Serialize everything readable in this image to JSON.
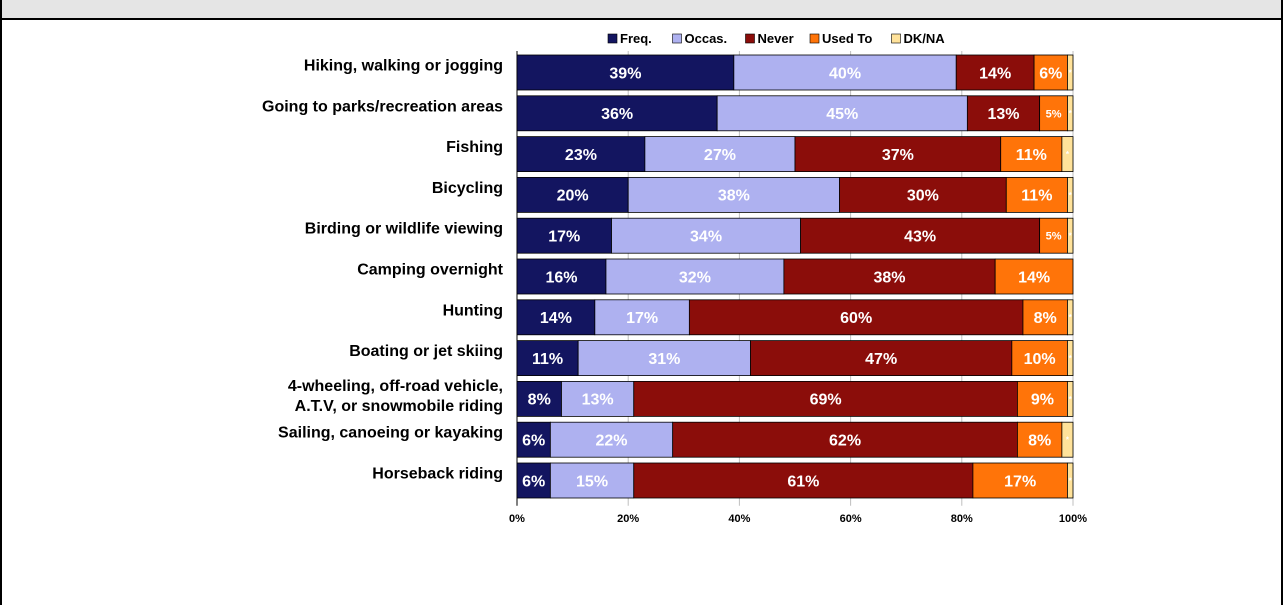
{
  "chart_data": {
    "type": "bar",
    "orientation": "horizontal",
    "stacked": true,
    "percent_axis": true,
    "title": "",
    "xlabel": "",
    "ylabel": "",
    "xlim": [
      0,
      100
    ],
    "x_ticks": [
      "0%",
      "20%",
      "40%",
      "60%",
      "80%",
      "100%"
    ],
    "legend_position": "top",
    "grid": true,
    "categories": [
      [
        "Hiking, walking or jogging"
      ],
      [
        "Going to parks/recreation areas"
      ],
      [
        "Fishing"
      ],
      [
        "Bicycling"
      ],
      [
        "Birding or wildlife viewing"
      ],
      [
        "Camping overnight"
      ],
      [
        "Hunting"
      ],
      [
        "Boating or jet skiing"
      ],
      [
        "4-wheeling, off-road vehicle,",
        "A.T.V, or snowmobile riding"
      ],
      [
        "Sailing, canoeing or kayaking"
      ],
      [
        "Horseback riding"
      ]
    ],
    "series": [
      {
        "name": "Freq.",
        "color": "#131560",
        "text_color": "#ffffff",
        "values": [
          39,
          36,
          23,
          20,
          17,
          16,
          14,
          11,
          8,
          6,
          6
        ],
        "labels": [
          "39%",
          "36%",
          "23%",
          "20%",
          "17%",
          "16%",
          "14%",
          "11%",
          "8%",
          "6%",
          "6%"
        ]
      },
      {
        "name": "Occas.",
        "color": "#aeb1f0",
        "text_color": "#131560",
        "values": [
          40,
          45,
          27,
          38,
          34,
          32,
          17,
          31,
          13,
          22,
          15
        ],
        "labels": [
          "40%",
          "45%",
          "27%",
          "38%",
          "34%",
          "32%",
          "17%",
          "31%",
          "13%",
          "22%",
          "15%"
        ]
      },
      {
        "name": "Never",
        "color": "#8b0d0a",
        "text_color": "#ffffff",
        "values": [
          14,
          13,
          37,
          30,
          43,
          38,
          60,
          47,
          69,
          62,
          61
        ],
        "labels": [
          "14%",
          "13%",
          "37%",
          "30%",
          "43%",
          "38%",
          "60%",
          "47%",
          "69%",
          "62%",
          "61%"
        ]
      },
      {
        "name": "Used To",
        "color": "#ff7409",
        "text_color": "#000000",
        "values": [
          6,
          5,
          11,
          11,
          5,
          14,
          8,
          10,
          9,
          8,
          17
        ],
        "labels": [
          "6%",
          "5%",
          "11%",
          "11%",
          "5%",
          "14%",
          "8%",
          "10%",
          "9%",
          "8%",
          "17%"
        ]
      },
      {
        "name": "DK/NA",
        "color": "#ffe29a",
        "text_color": "#000000",
        "values": [
          1,
          1,
          2,
          1,
          1,
          0,
          1,
          1,
          1,
          2,
          1
        ],
        "labels": [
          "*",
          "*",
          "*",
          "*",
          "*",
          "*",
          "*",
          "*",
          "*",
          "*",
          "*"
        ]
      }
    ]
  }
}
